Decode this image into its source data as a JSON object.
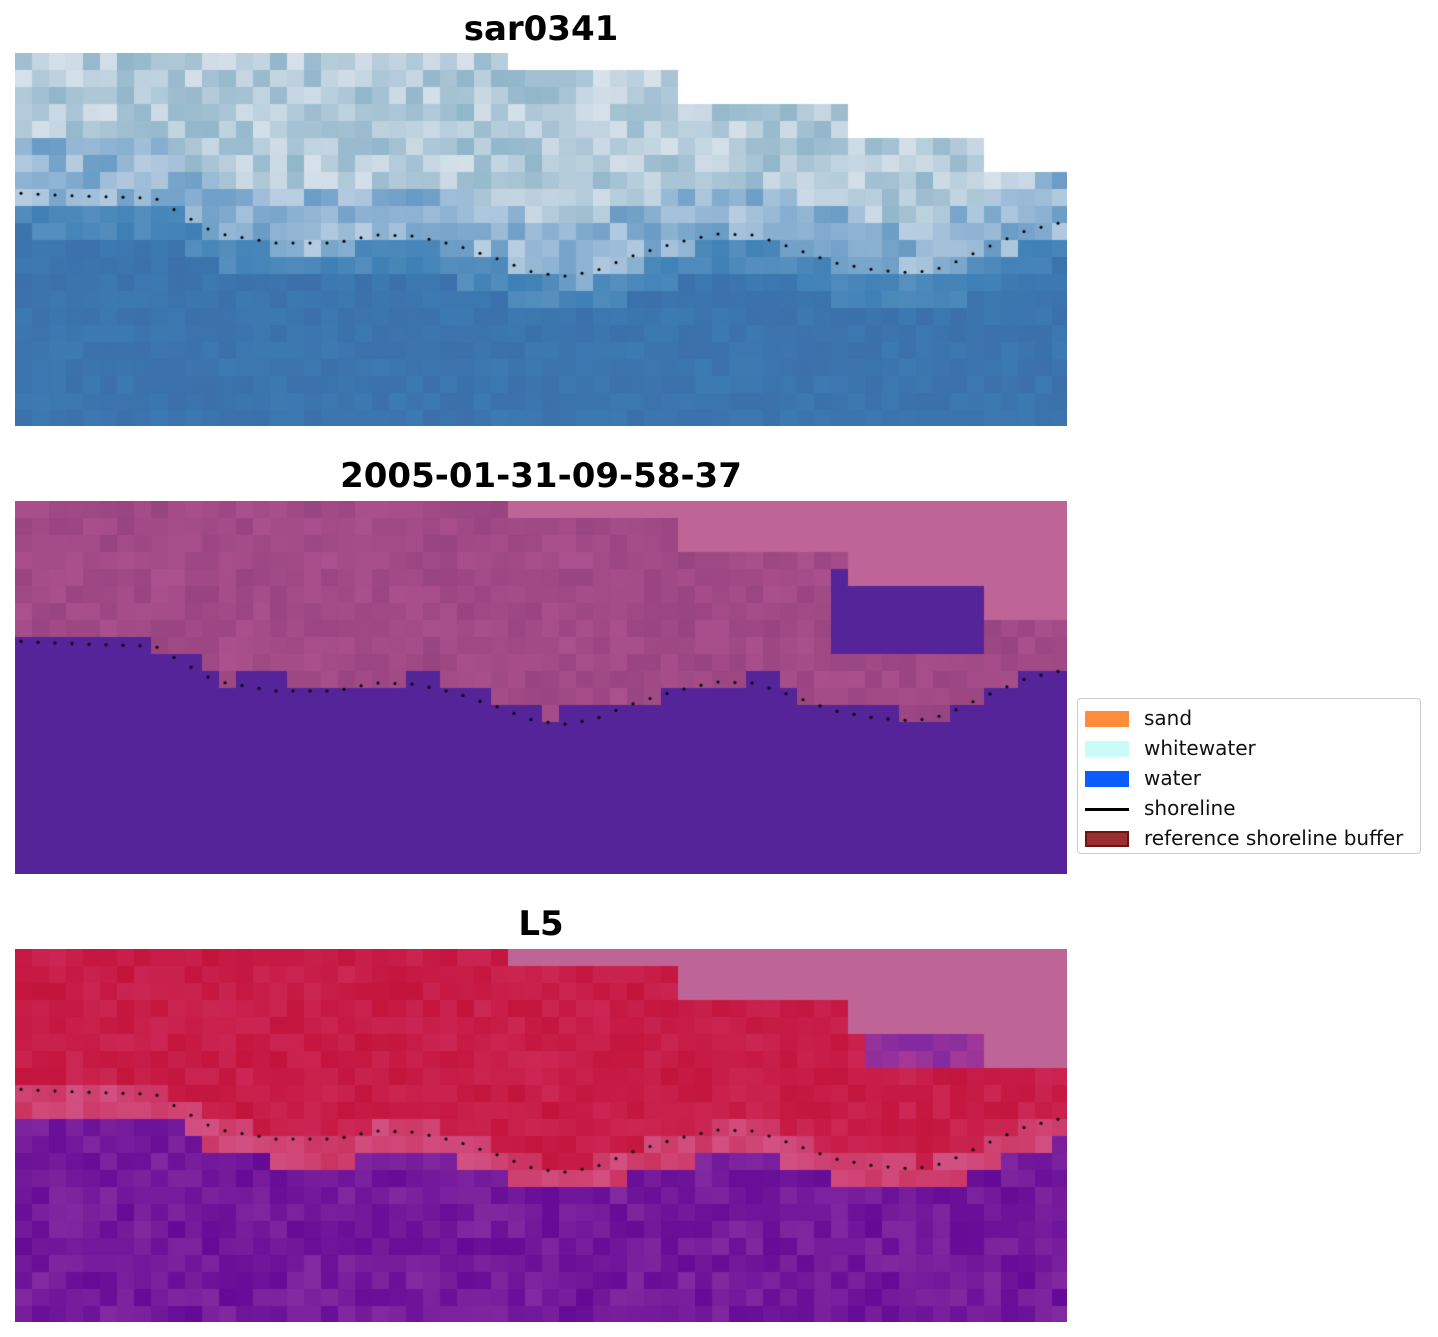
{
  "panels": [
    {
      "title": "sar0341"
    },
    {
      "title": "2005-01-31-09-58-37"
    },
    {
      "title": "L5"
    }
  ],
  "legend": {
    "entries": [
      {
        "label": "sand",
        "color": "#ff8c3a",
        "kind": "patch"
      },
      {
        "label": "whitewater",
        "color": "#c9fbf7",
        "kind": "patch"
      },
      {
        "label": "water",
        "color": "#0b5cff",
        "kind": "patch"
      },
      {
        "label": "shoreline",
        "color": "#000000",
        "kind": "line"
      },
      {
        "label": "reference shoreline buffer",
        "color": "#9b2e2e",
        "kind": "patch"
      }
    ]
  }
}
